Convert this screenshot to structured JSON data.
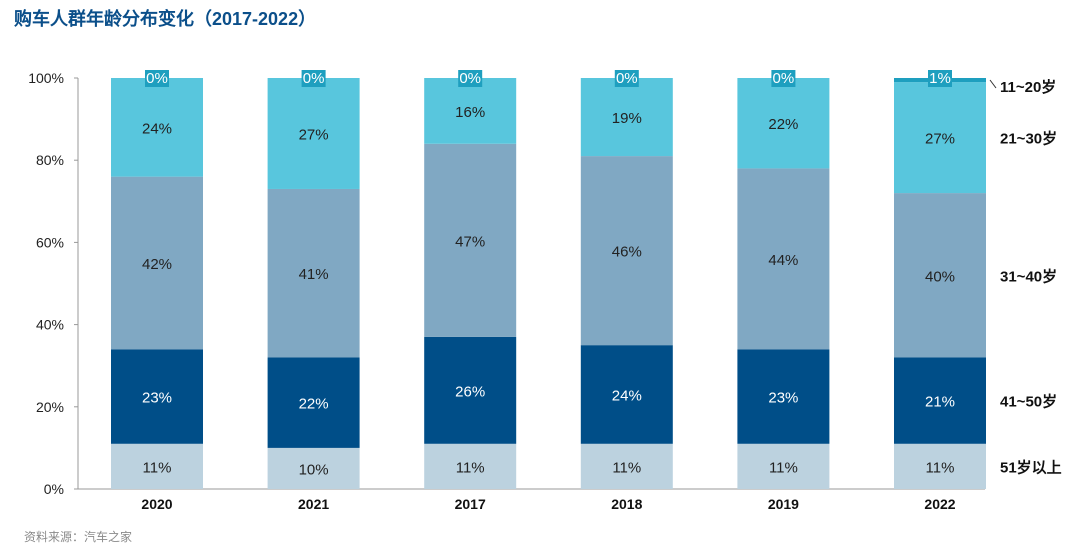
{
  "title": "购车人群年龄分布变化（2017-2022）",
  "source": "资料来源：汽车之家",
  "chart_data": {
    "type": "bar",
    "stacked": true,
    "categories": [
      "2020",
      "2021",
      "2017",
      "2018",
      "2019",
      "2022"
    ],
    "ylim": [
      0,
      100
    ],
    "yticks": [
      "0%",
      "20%",
      "40%",
      "60%",
      "80%",
      "100%"
    ],
    "series": [
      {
        "name": "51岁以上",
        "color": "#bcd2df",
        "text_color": "#222222",
        "values": [
          11,
          10,
          11,
          11,
          11,
          11
        ]
      },
      {
        "name": "41~50岁",
        "color": "#004e88",
        "text_color": "#ffffff",
        "values": [
          23,
          22,
          26,
          24,
          23,
          21
        ]
      },
      {
        "name": "31~40岁",
        "color": "#80a8c3",
        "text_color": "#222222",
        "values": [
          42,
          41,
          47,
          46,
          44,
          40
        ]
      },
      {
        "name": "21~30岁",
        "color": "#58c6dd",
        "text_color": "#222222",
        "values": [
          24,
          27,
          16,
          19,
          22,
          27
        ]
      },
      {
        "name": "11~20岁",
        "color": "#1e9fbf",
        "text_color": "#ffffff",
        "values": [
          0,
          0,
          0,
          0,
          0,
          1
        ]
      }
    ],
    "legend_position": "right",
    "grid": false
  }
}
